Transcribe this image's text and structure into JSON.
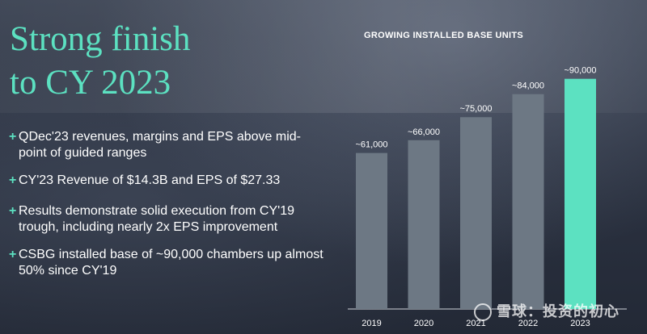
{
  "slide": {
    "title_lines": [
      "Strong finish",
      "to CY 2023"
    ],
    "bullets": [
      "QDec'23 revenues, margins and EPS above mid-point of guided ranges",
      "CY'23 Revenue of $14.3B and EPS of $27.33",
      "Results demonstrate solid execution from CY'19 trough, including nearly 2x EPS improvement",
      "CSBG installed base of ~90,000 chambers up almost 50% since CY'19"
    ],
    "bullet_marker": "+"
  },
  "watermark": {
    "text": "雪球：投资的初心"
  },
  "colors": {
    "accent": "#5ce1c1",
    "bar": "#6d7884",
    "background": "#2b3241",
    "text": "#ffffff"
  },
  "chart_data": {
    "type": "bar",
    "title": "GROWING INSTALLED BASE UNITS",
    "categories": [
      "2019",
      "2020",
      "2021",
      "2022",
      "2023"
    ],
    "values": [
      61000,
      66000,
      75000,
      84000,
      90000
    ],
    "data_labels": [
      "~61,000",
      "~66,000",
      "~75,000",
      "~84,000",
      "~90,000"
    ],
    "highlight_index": 4,
    "ylim": [
      0,
      94000
    ],
    "grid": false,
    "legend": "none"
  }
}
